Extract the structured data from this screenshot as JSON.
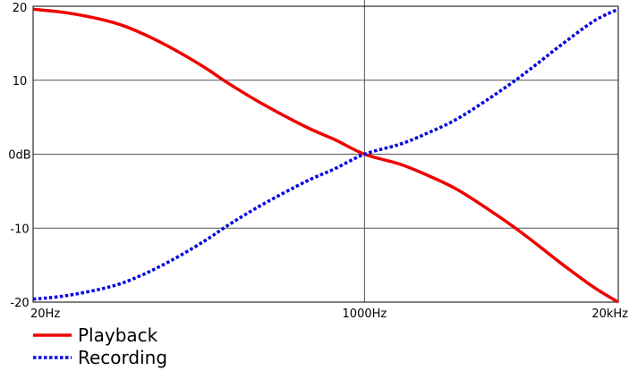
{
  "chart_data": {
    "type": "line",
    "x_scale": "log",
    "x_ticks": [
      {
        "value": 20,
        "label": "20Hz"
      },
      {
        "value": 1000,
        "label": "1000Hz"
      },
      {
        "value": 20000,
        "label": "20kHz"
      }
    ],
    "y_ticks": [
      {
        "value": 20,
        "label": "20"
      },
      {
        "value": 10,
        "label": "10"
      },
      {
        "value": 0,
        "label": "0dB"
      },
      {
        "value": -10,
        "label": "-10"
      },
      {
        "value": -20,
        "label": "-20"
      }
    ],
    "xlim": [
      20,
      20000
    ],
    "ylim": [
      -20,
      20
    ],
    "grid": {
      "horizontal": true,
      "vertical_at": [
        1000
      ]
    },
    "legend_placement": "bottom-left",
    "series": [
      {
        "name": "Playback",
        "color": "#ee0000",
        "style": "solid",
        "x": [
          20,
          30,
          50,
          70,
          100,
          150,
          200,
          300,
          500,
          700,
          1000,
          1500,
          2000,
          3000,
          5000,
          7000,
          10000,
          15000,
          20000
        ],
        "y": [
          19.6,
          19.1,
          17.9,
          16.5,
          14.5,
          11.8,
          9.6,
          6.8,
          3.7,
          2.0,
          0.0,
          -1.3,
          -2.6,
          -4.8,
          -8.6,
          -11.4,
          -14.6,
          -18.0,
          -20.0
        ]
      },
      {
        "name": "Recording",
        "color": "#0000dd",
        "style": "dotted",
        "x": [
          20,
          30,
          50,
          70,
          100,
          150,
          200,
          300,
          500,
          700,
          1000,
          1500,
          2000,
          3000,
          5000,
          7000,
          10000,
          15000,
          20000
        ],
        "y": [
          -19.6,
          -19.1,
          -17.9,
          -16.5,
          -14.5,
          -11.8,
          -9.6,
          -6.8,
          -3.7,
          -2.0,
          0.0,
          1.3,
          2.6,
          4.8,
          8.6,
          11.4,
          14.6,
          18.0,
          19.6
        ]
      }
    ]
  }
}
